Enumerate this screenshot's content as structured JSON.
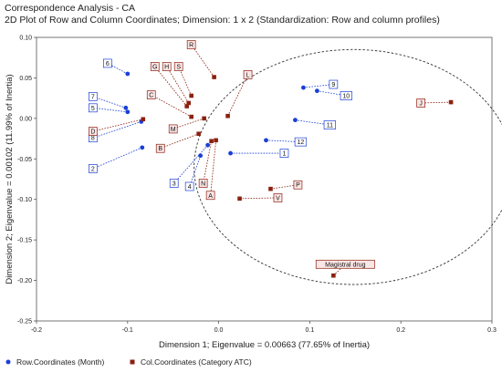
{
  "title_line1": "Correspondence Analysis - CA",
  "title_line2": "2D Plot of Row and Column Coordinates; Dimension: 1 x 2 (Standardization: Row and column profiles)",
  "chart_data": {
    "type": "scatter",
    "xlabel": "Dimension 1; Eigenvalue = 0.00663 (77.65% of Inertia)",
    "ylabel": "Dimension 2; Eigenvalue = 0.00102 (11.99% of Inertia)",
    "xlim": [
      -0.2,
      0.3
    ],
    "ylim": [
      -0.25,
      0.1
    ],
    "x_ticks": [
      "-0.2",
      "-0.1",
      "0.0",
      "0.1",
      "0.2",
      "0.3"
    ],
    "y_ticks": [
      "0.10",
      "0.05",
      "0.00",
      "-0.05",
      "-0.10",
      "-0.15",
      "-0.20",
      "-0.25"
    ],
    "x_tick_values": [
      -0.2,
      -0.1,
      0.0,
      0.1,
      0.2,
      0.3
    ],
    "y_tick_values": [
      0.1,
      0.05,
      0.0,
      -0.05,
      -0.1,
      -0.15,
      -0.2,
      -0.25
    ],
    "grid": false,
    "ellipse": {
      "center": [
        0.148,
        -0.06
      ],
      "radius_x": 0.175,
      "radius_y": 0.145,
      "style": "dashed"
    },
    "series": [
      {
        "name": "Row.Coordinates (Month)",
        "color": "#1a3fd6",
        "marker": "circle",
        "points": [
          {
            "label": "6",
            "x": -0.1,
            "y": 0.055,
            "lx": -0.122,
            "ly": 0.068
          },
          {
            "label": "7",
            "x": -0.102,
            "y": 0.013,
            "lx": -0.138,
            "ly": 0.027
          },
          {
            "label": "5",
            "x": -0.1,
            "y": 0.008,
            "lx": -0.138,
            "ly": 0.013
          },
          {
            "label": "8",
            "x": -0.085,
            "y": -0.004,
            "lx": -0.138,
            "ly": -0.024
          },
          {
            "label": "2",
            "x": -0.084,
            "y": -0.036,
            "lx": -0.138,
            "ly": -0.062
          },
          {
            "label": "3",
            "x": -0.012,
            "y": -0.033,
            "lx": -0.049,
            "ly": -0.08
          },
          {
            "label": "4",
            "x": -0.02,
            "y": -0.046,
            "lx": -0.032,
            "ly": -0.084
          },
          {
            "label": "1",
            "x": 0.013,
            "y": -0.043,
            "lx": 0.072,
            "ly": -0.043
          },
          {
            "label": "12",
            "x": 0.052,
            "y": -0.027,
            "lx": 0.09,
            "ly": -0.029
          },
          {
            "label": "11",
            "x": 0.084,
            "y": -0.002,
            "lx": 0.122,
            "ly": -0.008
          },
          {
            "label": "9",
            "x": 0.093,
            "y": 0.038,
            "lx": 0.126,
            "ly": 0.042
          },
          {
            "label": "10",
            "x": 0.108,
            "y": 0.034,
            "lx": 0.14,
            "ly": 0.028
          }
        ]
      },
      {
        "name": "Col.Coordinates (Category ATC)",
        "color": "#8b2010",
        "marker": "square",
        "points": [
          {
            "label": "R",
            "x": -0.005,
            "y": 0.051,
            "lx": -0.03,
            "ly": 0.091
          },
          {
            "label": "G",
            "x": -0.035,
            "y": 0.015,
            "lx": -0.07,
            "ly": 0.064
          },
          {
            "label": "H",
            "x": -0.033,
            "y": 0.019,
            "lx": -0.057,
            "ly": 0.064
          },
          {
            "label": "S",
            "x": -0.03,
            "y": 0.028,
            "lx": -0.044,
            "ly": 0.064
          },
          {
            "label": "L",
            "x": 0.01,
            "y": 0.003,
            "lx": 0.032,
            "ly": 0.054
          },
          {
            "label": "C",
            "x": -0.03,
            "y": 0.002,
            "lx": -0.074,
            "ly": 0.029
          },
          {
            "label": "M",
            "x": -0.016,
            "y": 0.0,
            "lx": -0.05,
            "ly": -0.013
          },
          {
            "label": "D",
            "x": -0.083,
            "y": -0.001,
            "lx": -0.138,
            "ly": -0.016
          },
          {
            "label": "B",
            "x": -0.022,
            "y": -0.019,
            "lx": -0.064,
            "ly": -0.037
          },
          {
            "label": "N",
            "x": -0.008,
            "y": -0.028,
            "lx": -0.017,
            "ly": -0.08
          },
          {
            "label": "A",
            "x": -0.003,
            "y": -0.027,
            "lx": -0.009,
            "ly": -0.095
          },
          {
            "label": "P",
            "x": 0.057,
            "y": -0.087,
            "lx": 0.087,
            "ly": -0.082
          },
          {
            "label": "V",
            "x": 0.023,
            "y": -0.099,
            "lx": 0.065,
            "ly": -0.098
          },
          {
            "label": "J",
            "x": 0.255,
            "y": 0.02,
            "lx": 0.222,
            "ly": 0.019
          },
          {
            "label": "Magistral drug",
            "x": 0.126,
            "y": -0.194,
            "lx": 0.139,
            "ly": -0.18
          }
        ]
      }
    ],
    "legend_position": "bottom"
  }
}
